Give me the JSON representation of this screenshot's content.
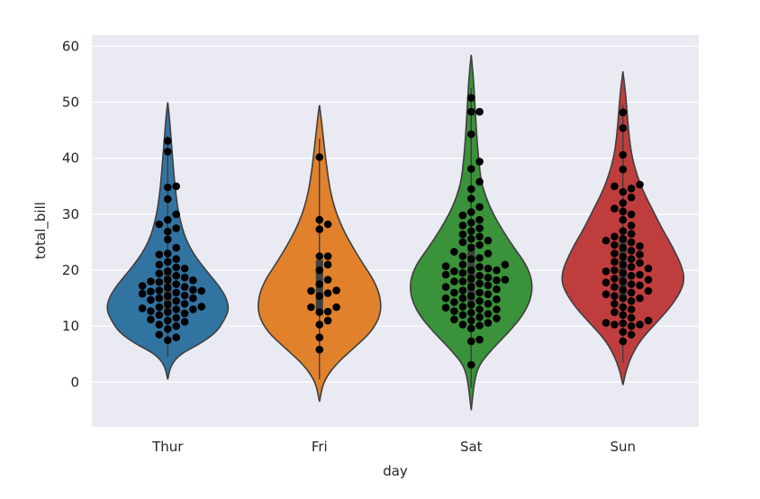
{
  "chart_data": {
    "type": "violin",
    "xlabel": "day",
    "ylabel": "total_bill",
    "categories": [
      "Thur",
      "Fri",
      "Sat",
      "Sun"
    ],
    "ylim": [
      -8,
      62
    ],
    "yticks": [
      0,
      10,
      20,
      30,
      40,
      50,
      60
    ],
    "grid": true,
    "background_color": "#eaeaf2",
    "grid_color": "#ffffff",
    "violin_colors": [
      "#3274a1",
      "#e1812c",
      "#3a923a",
      "#c03d3e"
    ],
    "point_color": "#000000",
    "violins": [
      {
        "category": "Thur",
        "range": [
          0.5,
          50
        ],
        "median": 16.2,
        "q1": 12.4,
        "q3": 20.2,
        "density": [
          [
            0.5,
            0.0
          ],
          [
            3,
            0.05
          ],
          [
            5,
            0.2
          ],
          [
            7,
            0.55
          ],
          [
            9,
            0.8
          ],
          [
            11,
            0.92
          ],
          [
            13,
            1.0
          ],
          [
            15,
            0.96
          ],
          [
            17,
            0.85
          ],
          [
            19,
            0.7
          ],
          [
            21,
            0.55
          ],
          [
            23,
            0.42
          ],
          [
            25,
            0.32
          ],
          [
            27,
            0.25
          ],
          [
            30,
            0.18
          ],
          [
            33,
            0.14
          ],
          [
            36,
            0.11
          ],
          [
            40,
            0.08
          ],
          [
            44,
            0.05
          ],
          [
            47,
            0.03
          ],
          [
            50,
            0.0
          ]
        ],
        "points": [
          7.5,
          8.0,
          8.5,
          9.5,
          10.0,
          10.3,
          10.8,
          11.0,
          11.2,
          11.5,
          12.0,
          12.3,
          12.5,
          12.7,
          13.0,
          13.0,
          13.2,
          13.4,
          13.5,
          13.9,
          14.0,
          14.5,
          14.7,
          15.0,
          15.0,
          15.4,
          15.5,
          15.8,
          16.0,
          16.2,
          16.3,
          16.4,
          16.5,
          16.9,
          17.0,
          17.2,
          17.5,
          17.9,
          18.0,
          18.2,
          18.3,
          18.7,
          19.0,
          19.4,
          19.8,
          20.3,
          20.5,
          21.0,
          21.5,
          22.0,
          22.8,
          23.0,
          24.0,
          25.5,
          26.9,
          27.5,
          28.2,
          29.0,
          30.0,
          32.7,
          34.8,
          35.0,
          41.2,
          43.1
        ]
      },
      {
        "category": "Fri",
        "range": [
          -3.5,
          49.5
        ],
        "median": 15.4,
        "q1": 12.1,
        "q3": 21.8,
        "density": [
          [
            -3.5,
            0.0
          ],
          [
            0,
            0.06
          ],
          [
            3,
            0.25
          ],
          [
            6,
            0.55
          ],
          [
            9,
            0.85
          ],
          [
            12,
            1.0
          ],
          [
            15,
            1.0
          ],
          [
            18,
            0.9
          ],
          [
            21,
            0.72
          ],
          [
            24,
            0.55
          ],
          [
            27,
            0.4
          ],
          [
            30,
            0.28
          ],
          [
            33,
            0.2
          ],
          [
            36,
            0.15
          ],
          [
            40,
            0.1
          ],
          [
            44,
            0.06
          ],
          [
            47,
            0.03
          ],
          [
            49.5,
            0.0
          ]
        ],
        "points": [
          5.8,
          8.0,
          10.3,
          11.0,
          12.5,
          12.6,
          13.4,
          13.4,
          15.4,
          15.9,
          16.3,
          16.4,
          17.5,
          18.3,
          20.0,
          21.0,
          22.5,
          22.5,
          27.3,
          28.2,
          29.0,
          40.2
        ]
      },
      {
        "category": "Sat",
        "range": [
          -5,
          58.5
        ],
        "median": 18.2,
        "q1": 13.9,
        "q3": 24.7,
        "density": [
          [
            -5,
            0.0
          ],
          [
            0,
            0.05
          ],
          [
            3,
            0.12
          ],
          [
            6,
            0.35
          ],
          [
            9,
            0.62
          ],
          [
            12,
            0.85
          ],
          [
            15,
            0.98
          ],
          [
            18,
            1.0
          ],
          [
            21,
            0.9
          ],
          [
            24,
            0.7
          ],
          [
            27,
            0.52
          ],
          [
            30,
            0.36
          ],
          [
            33,
            0.24
          ],
          [
            36,
            0.16
          ],
          [
            40,
            0.12
          ],
          [
            44,
            0.09
          ],
          [
            48,
            0.07
          ],
          [
            52,
            0.05
          ],
          [
            55,
            0.03
          ],
          [
            58.5,
            0.0
          ]
        ],
        "points": [
          3.1,
          7.3,
          7.6,
          9.6,
          10.1,
          10.3,
          10.6,
          11.0,
          11.2,
          11.4,
          11.6,
          12.0,
          12.2,
          12.4,
          12.7,
          13.0,
          13.0,
          13.3,
          13.5,
          13.8,
          14.0,
          14.3,
          14.5,
          14.8,
          15.0,
          15.0,
          15.4,
          15.7,
          16.0,
          16.0,
          16.4,
          16.6,
          17.0,
          17.0,
          17.3,
          17.6,
          18.0,
          18.0,
          18.2,
          18.3,
          18.5,
          18.7,
          19.0,
          19.2,
          19.5,
          19.8,
          20.0,
          20.0,
          20.3,
          20.6,
          20.7,
          21.0,
          21.0,
          22.0,
          22.2,
          22.5,
          23.0,
          23.3,
          24.0,
          24.5,
          25.0,
          25.3,
          25.6,
          26.0,
          26.4,
          27.0,
          27.5,
          28.0,
          28.5,
          29.0,
          29.8,
          30.4,
          31.3,
          32.8,
          34.5,
          35.8,
          38.1,
          39.4,
          44.3,
          48.3,
          48.3,
          50.8
        ]
      },
      {
        "category": "Sun",
        "range": [
          -0.5,
          55.5
        ],
        "median": 19.6,
        "q1": 14.6,
        "q3": 25.6,
        "density": [
          [
            -0.5,
            0.0
          ],
          [
            2,
            0.05
          ],
          [
            5,
            0.15
          ],
          [
            8,
            0.32
          ],
          [
            11,
            0.58
          ],
          [
            14,
            0.82
          ],
          [
            17,
            0.98
          ],
          [
            19,
            1.0
          ],
          [
            21,
            0.95
          ],
          [
            24,
            0.82
          ],
          [
            27,
            0.66
          ],
          [
            30,
            0.52
          ],
          [
            33,
            0.38
          ],
          [
            36,
            0.26
          ],
          [
            40,
            0.15
          ],
          [
            44,
            0.1
          ],
          [
            48,
            0.07
          ],
          [
            52,
            0.04
          ],
          [
            55.5,
            0.0
          ]
        ],
        "points": [
          7.3,
          8.5,
          9.0,
          10.0,
          10.3,
          10.3,
          10.5,
          10.6,
          11.0,
          11.5,
          12.0,
          12.5,
          13.0,
          13.4,
          14.0,
          14.5,
          15.0,
          15.0,
          15.4,
          15.7,
          16.0,
          16.3,
          16.5,
          17.0,
          17.3,
          17.5,
          17.8,
          18.0,
          18.3,
          18.5,
          19.0,
          19.2,
          19.5,
          19.8,
          20.0,
          20.3,
          20.6,
          21.0,
          21.3,
          21.5,
          22.0,
          22.4,
          22.8,
          23.0,
          23.5,
          24.0,
          24.3,
          24.5,
          25.0,
          25.3,
          25.6,
          26.0,
          26.5,
          27.0,
          28.0,
          29.0,
          30.0,
          30.5,
          31.0,
          32.0,
          33.0,
          34.0,
          34.6,
          35.0,
          35.3,
          38.0,
          40.6,
          45.4,
          48.2
        ]
      }
    ]
  }
}
